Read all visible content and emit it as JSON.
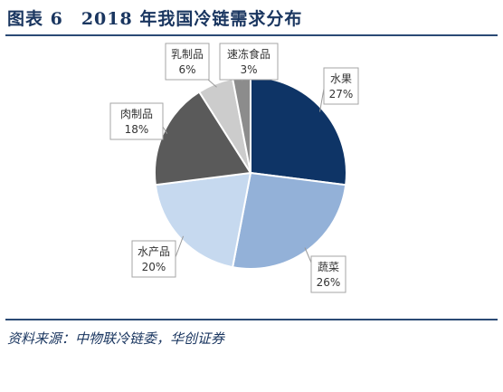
{
  "figure": {
    "title": "图表 6　2018 年我国冷链需求分布",
    "source": "资料来源：中物联冷链委，华创证券"
  },
  "chart_data": {
    "type": "pie",
    "title": "",
    "start": "12 o'clock, clockwise",
    "slices": [
      {
        "label": "水果",
        "value": 27,
        "value_label": "27%",
        "color": "#0e3466"
      },
      {
        "label": "蔬菜",
        "value": 26,
        "value_label": "26%",
        "color": "#93b1d8"
      },
      {
        "label": "水产品",
        "value": 20,
        "value_label": "20%",
        "color": "#c6d9ef"
      },
      {
        "label": "肉制品",
        "value": 18,
        "value_label": "18%",
        "color": "#5a5a5a"
      },
      {
        "label": "乳制品",
        "value": 6,
        "value_label": "6%",
        "color": "#cccccc"
      },
      {
        "label": "速冻食品",
        "value": 3,
        "value_label": "3%",
        "color": "#8c8c8c"
      }
    ],
    "label_style": "callout boxes with leader lines"
  }
}
